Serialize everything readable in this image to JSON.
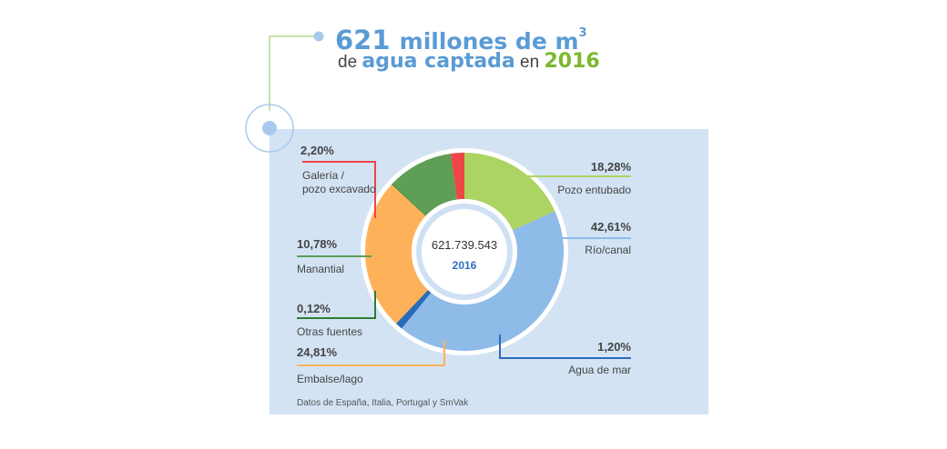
{
  "header": {
    "number": "621",
    "unit_text": "millones de m",
    "unit_sup": "3",
    "line2_pre": "de ",
    "line2_bold": "agua captada",
    "line2_mid": " en ",
    "line2_year": "2016"
  },
  "chart_data": {
    "type": "pie",
    "variant": "donut",
    "center_value": "621.739.543",
    "center_year": "2016",
    "slices": [
      {
        "label": "Pozo entubado",
        "value_label": "18,28%",
        "value": 18.28,
        "color": "#acd462"
      },
      {
        "label": "Río/canal",
        "value_label": "42,61%",
        "value": 42.61,
        "color": "#8fbbe8"
      },
      {
        "label": "Agua de mar",
        "value_label": "1,20%",
        "value": 1.2,
        "color": "#2b6cb8"
      },
      {
        "label": "Embalse/lago",
        "value_label": "24,81%",
        "value": 24.81,
        "color": "#fdb25a"
      },
      {
        "label": "Otras fuentes",
        "value_label": "0,12%",
        "value": 0.12,
        "color": "#2e7d32"
      },
      {
        "label": "Manantial",
        "value_label": "10,78%",
        "value": 10.78,
        "color": "#5e9e57"
      },
      {
        "label": "Galería /\npozo excavado",
        "value_label": "2,20%",
        "value": 2.2,
        "color": "#ee4546"
      }
    ]
  },
  "footer": {
    "source": "Datos de España, Italia, Portugal y SmVak"
  }
}
